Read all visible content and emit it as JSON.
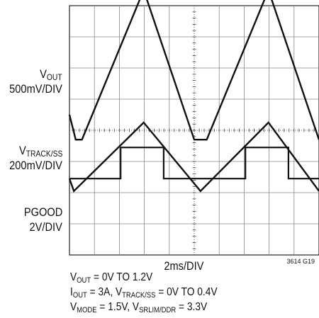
{
  "chart_data": {
    "type": "line",
    "xlabel": "2ms/DIV",
    "figure_id": "3614 G19",
    "grid": true,
    "divisions": {
      "x": 10,
      "y": 8
    },
    "x_per_div_ms": 2,
    "traces": [
      {
        "label_main": "V",
        "label_sub": "OUT",
        "scale": "500mV/DIV",
        "x_div": [
          0,
          0.5,
          1.0,
          5.95,
          10.0,
          10.5,
          11.0,
          15.95,
          20.0
        ],
        "y_div": [
          4.5,
          3.7,
          3.7,
          8.5,
          3.7,
          3.7,
          3.7,
          8.5,
          3.7
        ]
      },
      {
        "label_main": "V",
        "label_sub": "TRACK/SS",
        "scale": "200mV/DIV",
        "x_div": [
          0,
          0.35,
          5.95,
          10.5,
          15.95,
          20.0
        ],
        "y_div": [
          2.45,
          2.05,
          4.25,
          2.05,
          4.25,
          2.05
        ]
      },
      {
        "label_main": "PGOOD",
        "label_sub": "",
        "scale": "2V/DIV",
        "x_div": [
          0,
          4.1,
          4.1,
          7.55,
          7.55,
          14.1,
          14.1,
          17.55,
          17.55,
          20.0
        ],
        "y_div": [
          2.45,
          2.45,
          3.45,
          3.45,
          2.45,
          2.45,
          3.45,
          3.45,
          2.45,
          2.45
        ]
      }
    ]
  },
  "caption": {
    "line1": {
      "a_main": "V",
      "a_sub": "OUT",
      "a_tail": " = 0V TO 1.2V"
    },
    "line2": {
      "a_main": "I",
      "a_sub": "OUT",
      "a_tail": " = 3A, ",
      "b_main": "V",
      "b_sub": "TRACK/SS",
      "b_tail": " = 0V TO 0.4V"
    },
    "line3": {
      "a_main": "V",
      "a_sub": "MODE",
      "a_tail": " = 1.5V, ",
      "b_main": "V",
      "b_sub": "SRLIM/DDR",
      "b_tail": " = 3.3V"
    }
  }
}
